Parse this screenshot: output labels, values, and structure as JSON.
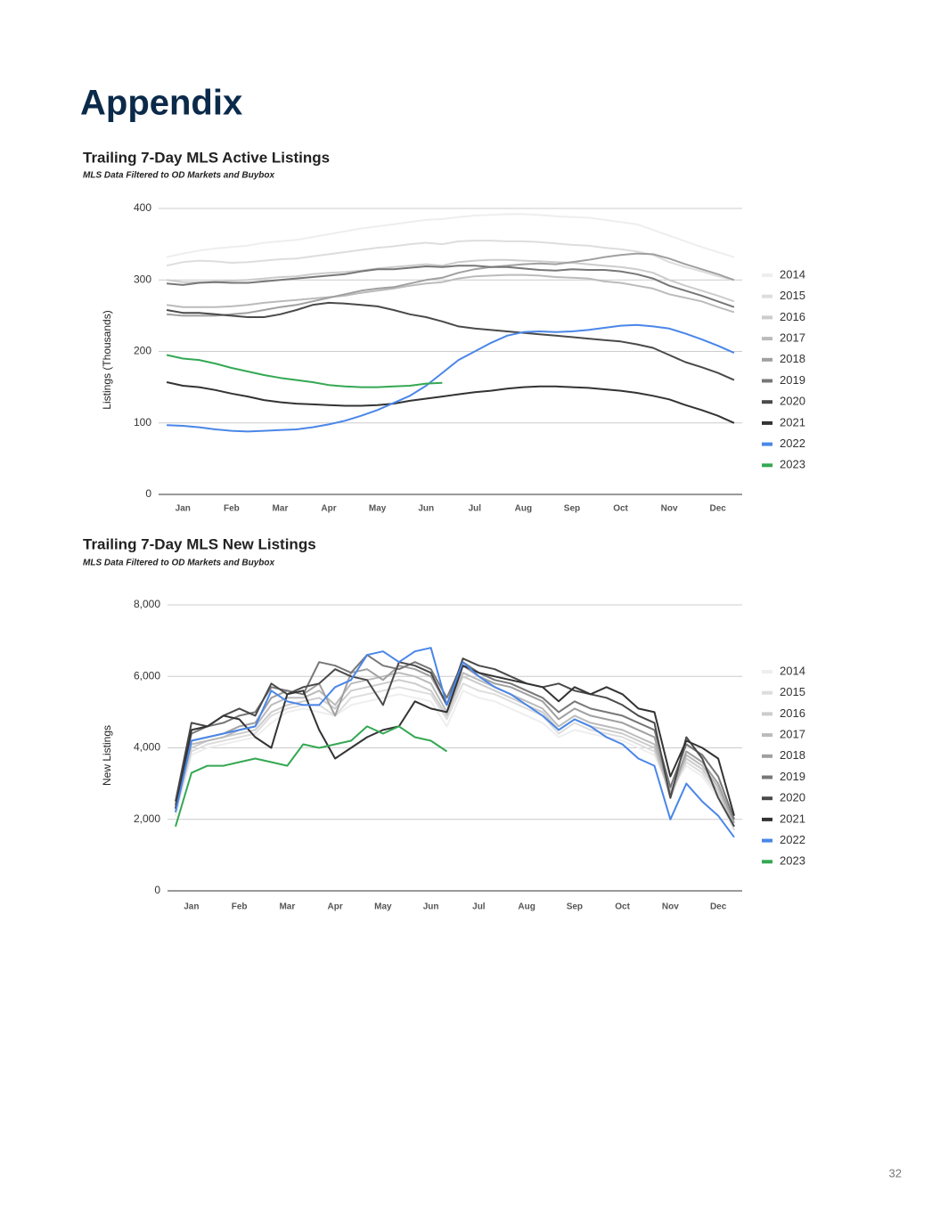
{
  "title": "Appendix",
  "page_number": 32,
  "chart_data": [
    {
      "type": "line",
      "title": "Trailing 7-Day MLS Active Listings",
      "subtitle": "MLS Data Filtered to OD Markets and Buybox",
      "y_label": "Listings (Thousands)",
      "categories": [
        null,
        "Jan",
        null,
        null,
        "Feb",
        null,
        null,
        "Mar",
        null,
        null,
        "Apr",
        null,
        null,
        "May",
        null,
        null,
        "Jun",
        null,
        null,
        "Jul",
        null,
        null,
        "Aug",
        null,
        null,
        "Sep",
        null,
        null,
        "Oct",
        null,
        null,
        "Nov",
        null,
        null,
        "Dec",
        null
      ],
      "ylim": [
        0,
        400
      ],
      "yticks": [
        0,
        100,
        200,
        300,
        400
      ],
      "grid": true,
      "legend": "right",
      "series": [
        {
          "name": "2014",
          "color": "#eeeeee",
          "values": [
            332,
            337,
            341,
            344,
            346,
            348,
            352,
            354,
            356,
            360,
            364,
            368,
            372,
            375,
            378,
            381,
            384,
            385,
            388,
            390,
            391,
            392,
            392,
            391,
            389,
            388,
            387,
            384,
            381,
            378,
            370,
            362,
            354,
            346,
            339,
            332
          ]
        },
        {
          "name": "2015",
          "color": "#dddddd",
          "values": [
            320,
            325,
            327,
            326,
            324,
            325,
            327,
            329,
            330,
            333,
            336,
            339,
            342,
            345,
            347,
            350,
            352,
            350,
            354,
            355,
            355,
            354,
            354,
            353,
            351,
            349,
            348,
            345,
            343,
            340,
            335,
            325,
            318,
            312,
            305,
            300
          ]
        },
        {
          "name": "2016",
          "color": "#cccccc",
          "values": [
            300,
            297,
            297,
            298,
            299,
            300,
            302,
            304,
            305,
            308,
            310,
            311,
            313,
            316,
            318,
            320,
            322,
            320,
            325,
            327,
            328,
            328,
            327,
            326,
            325,
            324,
            322,
            320,
            318,
            315,
            310,
            300,
            292,
            285,
            278,
            270
          ]
        },
        {
          "name": "2017",
          "color": "#bbbbbb",
          "values": [
            265,
            262,
            262,
            262,
            263,
            265,
            268,
            270,
            272,
            274,
            276,
            278,
            282,
            285,
            288,
            292,
            295,
            297,
            302,
            305,
            306,
            307,
            307,
            306,
            304,
            303,
            302,
            298,
            296,
            292,
            288,
            280,
            275,
            270,
            262,
            255
          ]
        },
        {
          "name": "2018",
          "color": "#a0a0a0",
          "values": [
            252,
            250,
            250,
            250,
            252,
            254,
            258,
            262,
            265,
            270,
            275,
            280,
            285,
            288,
            290,
            295,
            300,
            303,
            310,
            315,
            318,
            320,
            322,
            323,
            322,
            325,
            328,
            332,
            335,
            337,
            336,
            330,
            322,
            315,
            308,
            300
          ]
        },
        {
          "name": "2019",
          "color": "#777777",
          "values": [
            295,
            293,
            296,
            297,
            296,
            296,
            298,
            300,
            302,
            304,
            306,
            308,
            312,
            315,
            315,
            317,
            319,
            318,
            320,
            320,
            318,
            318,
            316,
            314,
            313,
            315,
            314,
            314,
            312,
            308,
            302,
            292,
            285,
            278,
            270,
            262
          ]
        },
        {
          "name": "2020",
          "color": "#4a4a4a",
          "values": [
            258,
            254,
            254,
            252,
            250,
            248,
            248,
            252,
            258,
            265,
            268,
            267,
            265,
            263,
            258,
            252,
            248,
            242,
            235,
            232,
            230,
            228,
            226,
            224,
            222,
            220,
            218,
            216,
            214,
            210,
            205,
            195,
            185,
            178,
            170,
            160
          ]
        },
        {
          "name": "2021",
          "color": "#333333",
          "values": [
            157,
            152,
            150,
            146,
            141,
            137,
            132,
            129,
            127,
            126,
            125,
            124,
            124,
            125,
            127,
            131,
            134,
            137,
            140,
            143,
            145,
            148,
            150,
            151,
            151,
            150,
            149,
            147,
            145,
            142,
            138,
            133,
            125,
            118,
            110,
            100
          ]
        },
        {
          "name": "2022",
          "color": "#4a86e8",
          "values": [
            97,
            96,
            94,
            91,
            89,
            88,
            89,
            90,
            91,
            94,
            98,
            103,
            110,
            118,
            128,
            138,
            152,
            170,
            188,
            200,
            212,
            222,
            227,
            228,
            227,
            228,
            230,
            233,
            236,
            237,
            235,
            232,
            225,
            217,
            208,
            198
          ]
        },
        {
          "name": "2023",
          "color": "#34a853",
          "values": [
            195,
            190,
            188,
            183,
            177,
            172,
            167,
            163,
            160,
            157,
            153,
            151,
            150,
            150,
            151,
            152,
            155,
            156,
            null,
            null,
            null,
            null,
            null,
            null,
            null,
            null,
            null,
            null,
            null,
            null,
            null,
            null,
            null,
            null,
            null,
            null
          ]
        }
      ]
    },
    {
      "type": "line",
      "title": "Trailing 7-Day MLS New Listings",
      "subtitle": "MLS Data Filtered to OD Markets and Buybox",
      "y_label": "New Listings",
      "categories": [
        null,
        "Jan",
        null,
        null,
        "Feb",
        null,
        null,
        "Mar",
        null,
        null,
        "Apr",
        null,
        null,
        "May",
        null,
        null,
        "Jun",
        null,
        null,
        "Jul",
        null,
        null,
        "Aug",
        null,
        null,
        "Sep",
        null,
        null,
        "Oct",
        null,
        null,
        "Nov",
        null,
        null,
        "Dec",
        null
      ],
      "ylim": [
        0,
        8000
      ],
      "yticks": [
        0,
        {
          "value": 2000,
          "label": "2,000"
        },
        {
          "value": 4000,
          "label": "4,000"
        },
        {
          "value": 6000,
          "label": "6,000"
        },
        {
          "value": 8000,
          "label": "8,000"
        }
      ],
      "grid": true,
      "legend": "right",
      "series": [
        {
          "name": "2014",
          "color": "#eeeeee",
          "values": [
            2100,
            3800,
            4000,
            4100,
            4200,
            4300,
            4700,
            5000,
            5100,
            5000,
            4900,
            5200,
            5300,
            5400,
            5500,
            5400,
            5300,
            4600,
            5600,
            5400,
            5300,
            5100,
            4900,
            4700,
            4300,
            4500,
            4400,
            4300,
            4200,
            4000,
            3800,
            2800,
            3500,
            3200,
            2600,
            1700
          ]
        },
        {
          "name": "2015",
          "color": "#dddddd",
          "values": [
            2200,
            3900,
            4100,
            4200,
            4300,
            4400,
            4900,
            5100,
            5200,
            5200,
            4900,
            5400,
            5500,
            5600,
            5700,
            5600,
            5500,
            4800,
            5800,
            5600,
            5500,
            5300,
            5100,
            4900,
            4400,
            4700,
            4500,
            4400,
            4300,
            4100,
            3900,
            2700,
            3600,
            3300,
            2700,
            1700
          ]
        },
        {
          "name": "2016",
          "color": "#cccccc",
          "values": [
            2200,
            4000,
            4200,
            4300,
            4400,
            4500,
            5000,
            5200,
            5300,
            5400,
            5100,
            5600,
            5700,
            5800,
            5900,
            5800,
            5600,
            4900,
            6000,
            5800,
            5600,
            5400,
            5200,
            5000,
            4500,
            4800,
            4600,
            4500,
            4400,
            4200,
            4000,
            2800,
            3700,
            3400,
            2800,
            1800
          ]
        },
        {
          "name": "2017",
          "color": "#bbbbbb",
          "values": [
            2300,
            4100,
            4200,
            4300,
            4500,
            4600,
            5200,
            5400,
            5400,
            5600,
            5200,
            5800,
            5900,
            6000,
            6100,
            6000,
            5800,
            5000,
            6100,
            5900,
            5700,
            5500,
            5300,
            5100,
            4600,
            4900,
            4700,
            4600,
            4500,
            4300,
            4100,
            2600,
            3800,
            3500,
            2900,
            1800
          ]
        },
        {
          "name": "2018",
          "color": "#a0a0a0",
          "values": [
            2300,
            4200,
            4300,
            4400,
            4600,
            4700,
            5400,
            5600,
            5500,
            5800,
            4900,
            6100,
            6200,
            5900,
            6300,
            6200,
            6000,
            5200,
            6300,
            6000,
            5800,
            5700,
            5500,
            5300,
            4800,
            5100,
            4900,
            4800,
            4700,
            4500,
            4300,
            2700,
            3900,
            3600,
            3000,
            1900
          ]
        },
        {
          "name": "2019",
          "color": "#777777",
          "values": [
            2400,
            4400,
            4600,
            4700,
            4900,
            5000,
            5700,
            5600,
            5500,
            6400,
            6300,
            6100,
            6600,
            6300,
            6200,
            6400,
            6200,
            5400,
            6400,
            6100,
            5900,
            5800,
            5600,
            5400,
            5000,
            5300,
            5100,
            5000,
            4900,
            4700,
            4500,
            2900,
            4100,
            3800,
            3200,
            2000
          ]
        },
        {
          "name": "2020",
          "color": "#4a4a4a",
          "values": [
            2500,
            4700,
            4600,
            4900,
            5100,
            4900,
            5800,
            5500,
            5700,
            5800,
            6200,
            6000,
            5900,
            5200,
            6400,
            6300,
            6100,
            5200,
            6500,
            6300,
            6200,
            6000,
            5800,
            5700,
            5800,
            5600,
            5500,
            5400,
            5200,
            4900,
            4700,
            2600,
            4300,
            3700,
            2600,
            1800
          ]
        },
        {
          "name": "2021",
          "color": "#333333",
          "values": [
            2300,
            4500,
            4600,
            4900,
            4800,
            4300,
            4000,
            5500,
            5600,
            4500,
            3700,
            4000,
            4300,
            4500,
            4600,
            5300,
            5100,
            5000,
            6300,
            6100,
            6000,
            5900,
            5800,
            5700,
            5300,
            5700,
            5500,
            5700,
            5500,
            5100,
            5000,
            3200,
            4200,
            4000,
            3700,
            2100
          ]
        },
        {
          "name": "2022",
          "color": "#4a86e8",
          "values": [
            2200,
            4200,
            4300,
            4400,
            4500,
            4600,
            5600,
            5300,
            5200,
            5200,
            5700,
            5900,
            6600,
            6700,
            6400,
            6700,
            6800,
            5200,
            6400,
            6000,
            5700,
            5500,
            5200,
            4900,
            4500,
            4800,
            4600,
            4300,
            4100,
            3700,
            3500,
            2000,
            3000,
            2500,
            2100,
            1500
          ]
        },
        {
          "name": "2023",
          "color": "#34a853",
          "values": [
            1800,
            3300,
            3500,
            3500,
            3600,
            3700,
            3600,
            3500,
            4100,
            4000,
            4100,
            4200,
            4600,
            4400,
            4600,
            4300,
            4200,
            3900,
            null,
            null,
            null,
            null,
            null,
            null,
            null,
            null,
            null,
            null,
            null,
            null,
            null,
            null,
            null,
            null,
            null,
            null
          ]
        }
      ]
    }
  ]
}
